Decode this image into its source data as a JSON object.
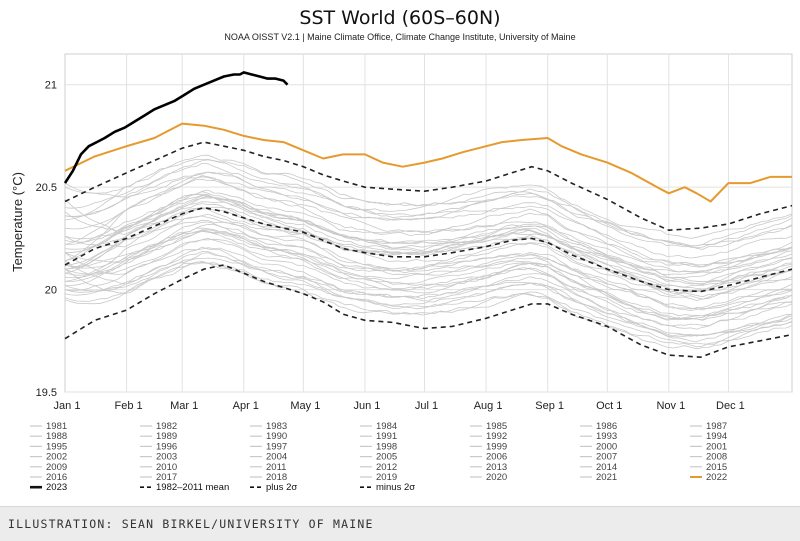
{
  "chart_data": {
    "type": "line",
    "title": "SST World (60S–60N)",
    "subtitle": "NOAA OISST V2.1 | Maine Climate Office, Climate Change Institute, University of Maine",
    "ylabel": "Temperature (°C)",
    "xlabel": "",
    "ylim": [
      19.5,
      21.15
    ],
    "yticks": [
      "19.5",
      "20",
      "20.5",
      "21"
    ],
    "ytick_values": [
      19.5,
      20,
      20.5,
      21
    ],
    "x_day_range": [
      0,
      366
    ],
    "month_labels": [
      "Jan 1",
      "Feb 1",
      "Mar 1",
      "Apr 1",
      "May 1",
      "Jun 1",
      "Jul 1",
      "Aug 1",
      "Sep 1",
      "Oct 1",
      "Nov 1",
      "Dec 1"
    ],
    "month_days": [
      0,
      31,
      59,
      90,
      120,
      151,
      181,
      212,
      243,
      273,
      304,
      334
    ],
    "grid": true,
    "series": [
      {
        "name": "2023",
        "color": "#000000",
        "style": "solid-bold",
        "x": [
          0,
          4,
          8,
          12,
          16,
          20,
          25,
          30,
          35,
          40,
          45,
          50,
          55,
          60,
          65,
          70,
          75,
          80,
          85,
          88,
          90,
          94,
          98,
          102,
          106,
          110,
          112
        ],
        "y": [
          20.52,
          20.58,
          20.66,
          20.7,
          20.72,
          20.74,
          20.77,
          20.79,
          20.82,
          20.85,
          20.88,
          20.9,
          20.92,
          20.95,
          20.98,
          21.0,
          21.02,
          21.04,
          21.05,
          21.05,
          21.06,
          21.05,
          21.04,
          21.03,
          21.03,
          21.02,
          21.0
        ]
      },
      {
        "name": "2022",
        "color": "#e69a2e",
        "style": "solid",
        "x": [
          0,
          15,
          31,
          45,
          59,
          70,
          80,
          90,
          100,
          110,
          120,
          130,
          140,
          151,
          160,
          170,
          181,
          190,
          200,
          212,
          220,
          230,
          243,
          250,
          260,
          273,
          285,
          300,
          304,
          312,
          318,
          325,
          334,
          345,
          355,
          366
        ],
        "y": [
          20.58,
          20.65,
          20.7,
          20.74,
          20.81,
          20.8,
          20.78,
          20.75,
          20.73,
          20.72,
          20.68,
          20.64,
          20.66,
          20.66,
          20.62,
          20.6,
          20.62,
          20.64,
          20.67,
          20.7,
          20.72,
          20.73,
          20.74,
          20.7,
          20.66,
          20.62,
          20.57,
          20.49,
          20.47,
          20.5,
          20.47,
          20.43,
          20.52,
          20.52,
          20.55,
          20.55
        ]
      },
      {
        "name": "1982–2011 mean",
        "color": "#222222",
        "style": "dashed",
        "x": [
          0,
          15,
          31,
          45,
          59,
          70,
          80,
          90,
          100,
          110,
          120,
          130,
          140,
          151,
          165,
          181,
          195,
          212,
          225,
          235,
          243,
          255,
          273,
          290,
          304,
          320,
          334,
          350,
          366
        ],
        "y": [
          20.12,
          20.2,
          20.25,
          20.31,
          20.37,
          20.4,
          20.38,
          20.35,
          20.32,
          20.3,
          20.28,
          20.24,
          20.2,
          20.18,
          20.16,
          20.16,
          20.18,
          20.21,
          20.24,
          20.25,
          20.23,
          20.17,
          20.1,
          20.04,
          20.0,
          19.99,
          20.02,
          20.06,
          20.1
        ]
      },
      {
        "name": "plus 2σ",
        "color": "#222222",
        "style": "dashed",
        "x": [
          0,
          15,
          31,
          45,
          59,
          70,
          80,
          90,
          100,
          110,
          120,
          130,
          140,
          151,
          165,
          181,
          195,
          212,
          225,
          235,
          243,
          255,
          273,
          290,
          304,
          320,
          334,
          350,
          366
        ],
        "y": [
          20.43,
          20.5,
          20.57,
          20.63,
          20.69,
          20.72,
          20.7,
          20.68,
          20.65,
          20.63,
          20.6,
          20.56,
          20.53,
          20.5,
          20.49,
          20.48,
          20.5,
          20.53,
          20.57,
          20.6,
          20.58,
          20.52,
          20.44,
          20.35,
          20.29,
          20.3,
          20.32,
          20.37,
          20.41
        ]
      },
      {
        "name": "minus 2σ",
        "color": "#222222",
        "style": "dashed",
        "x": [
          0,
          15,
          31,
          45,
          59,
          70,
          80,
          90,
          100,
          110,
          120,
          130,
          140,
          151,
          165,
          181,
          195,
          212,
          225,
          235,
          243,
          255,
          273,
          290,
          304,
          320,
          334,
          350,
          366
        ],
        "y": [
          19.76,
          19.85,
          19.9,
          19.98,
          20.05,
          20.1,
          20.12,
          20.08,
          20.04,
          20.01,
          19.98,
          19.94,
          19.88,
          19.85,
          19.84,
          19.81,
          19.82,
          19.86,
          19.9,
          19.93,
          19.93,
          19.88,
          19.82,
          19.73,
          19.68,
          19.67,
          19.72,
          19.75,
          19.78
        ]
      }
    ],
    "background_years": [
      {
        "name": "1981",
        "start": 20.1,
        "offset": -0.26
      },
      {
        "name": "1982",
        "start": 20.02,
        "offset": -0.22
      },
      {
        "name": "1983",
        "start": 20.18,
        "offset": -0.08
      },
      {
        "name": "1984",
        "start": 19.96,
        "offset": -0.27
      },
      {
        "name": "1985",
        "start": 19.95,
        "offset": -0.28
      },
      {
        "name": "1986",
        "start": 20.0,
        "offset": -0.21
      },
      {
        "name": "1987",
        "start": 20.12,
        "offset": -0.08
      },
      {
        "name": "1988",
        "start": 20.18,
        "offset": -0.18
      },
      {
        "name": "1989",
        "start": 19.98,
        "offset": -0.21
      },
      {
        "name": "1990",
        "start": 20.08,
        "offset": -0.12
      },
      {
        "name": "1991",
        "start": 20.1,
        "offset": -0.14
      },
      {
        "name": "1992",
        "start": 20.14,
        "offset": -0.2
      },
      {
        "name": "1993",
        "start": 20.0,
        "offset": -0.16
      },
      {
        "name": "1994",
        "start": 20.04,
        "offset": -0.12
      },
      {
        "name": "1995",
        "start": 20.12,
        "offset": -0.1
      },
      {
        "name": "1996",
        "start": 20.02,
        "offset": -0.13
      },
      {
        "name": "1997",
        "start": 20.08,
        "offset": 0.02
      },
      {
        "name": "1998",
        "start": 20.44,
        "offset": 0.02
      },
      {
        "name": "1999",
        "start": 20.06,
        "offset": -0.09
      },
      {
        "name": "2000",
        "start": 20.04,
        "offset": -0.05
      },
      {
        "name": "2001",
        "start": 20.12,
        "offset": 0.01
      },
      {
        "name": "2002",
        "start": 20.18,
        "offset": 0.05
      },
      {
        "name": "2003",
        "start": 20.26,
        "offset": 0.06
      },
      {
        "name": "2004",
        "start": 20.2,
        "offset": 0.04
      },
      {
        "name": "2005",
        "start": 20.24,
        "offset": 0.06
      },
      {
        "name": "2006",
        "start": 20.18,
        "offset": 0.06
      },
      {
        "name": "2007",
        "start": 20.26,
        "offset": -0.02
      },
      {
        "name": "2008",
        "start": 20.1,
        "offset": -0.02
      },
      {
        "name": "2009",
        "start": 20.14,
        "offset": 0.12
      },
      {
        "name": "2010",
        "start": 20.38,
        "offset": 0.02
      },
      {
        "name": "2011",
        "start": 20.1,
        "offset": 0.0
      },
      {
        "name": "2012",
        "start": 20.14,
        "offset": 0.08
      },
      {
        "name": "2013",
        "start": 20.22,
        "offset": 0.08
      },
      {
        "name": "2014",
        "start": 20.22,
        "offset": 0.16
      },
      {
        "name": "2015",
        "start": 20.34,
        "offset": 0.24
      },
      {
        "name": "2016",
        "start": 20.52,
        "offset": 0.22
      },
      {
        "name": "2017",
        "start": 20.36,
        "offset": 0.18
      },
      {
        "name": "2018",
        "start": 20.3,
        "offset": 0.14
      },
      {
        "name": "2019",
        "start": 20.4,
        "offset": 0.24
      },
      {
        "name": "2020",
        "start": 20.5,
        "offset": 0.26
      },
      {
        "name": "2021",
        "start": 20.36,
        "offset": 0.2
      }
    ],
    "legend": [
      [
        "1981",
        "1982",
        "1983",
        "1984",
        "1985",
        "1986",
        "1987"
      ],
      [
        "1988",
        "1989",
        "1990",
        "1991",
        "1992",
        "1993",
        "1994"
      ],
      [
        "1995",
        "1996",
        "1997",
        "1998",
        "1999",
        "2000",
        "2001"
      ],
      [
        "2002",
        "2003",
        "2004",
        "2005",
        "2006",
        "2007",
        "2008"
      ],
      [
        "2009",
        "2010",
        "2011",
        "2012",
        "2013",
        "2014",
        "2015"
      ],
      [
        "2016",
        "2017",
        "2018",
        "2019",
        "2020",
        "2021",
        "2022"
      ]
    ],
    "legend_last_row": [
      "2023",
      "1982–2011 mean",
      "plus 2σ",
      "minus 2σ"
    ]
  },
  "caption": "ILLUSTRATION: SEAN BIRKEL/UNIVERSITY OF MAINE"
}
